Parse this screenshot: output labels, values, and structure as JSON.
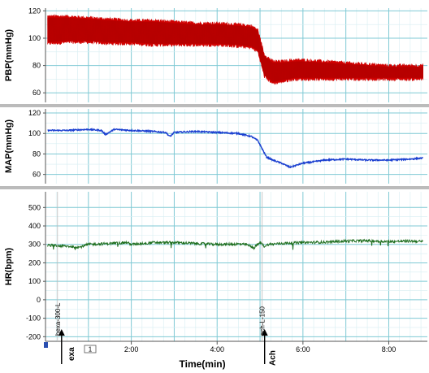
{
  "chart_data": [
    {
      "type": "line",
      "ylabel": "PBP(mmHg)",
      "y_ticks": [
        "120",
        "100",
        "80",
        "60"
      ],
      "ylim": [
        53,
        122
      ],
      "series": [
        {
          "color": "#d00000",
          "style": "band",
          "x": [
            0.05,
            0.5,
            1.0,
            1.5,
            2.0,
            2.5,
            3.0,
            3.5,
            4.0,
            4.5,
            4.8,
            4.95,
            5.1,
            5.3,
            5.5,
            5.8,
            6.0,
            6.5,
            7.0,
            7.5,
            8.0,
            8.5,
            8.8
          ],
          "upper": [
            116,
            116,
            115,
            114,
            113,
            113,
            112,
            111,
            111,
            110,
            109,
            106,
            88,
            83,
            83,
            84,
            84,
            83,
            82,
            81,
            80,
            80,
            80
          ],
          "lower": [
            96,
            97,
            97,
            96,
            96,
            95,
            95,
            95,
            95,
            94,
            93,
            90,
            72,
            67,
            68,
            70,
            70,
            70,
            70,
            70,
            70,
            70,
            70
          ]
        }
      ]
    },
    {
      "type": "line",
      "ylabel": "MAP(mmHg)",
      "y_ticks": [
        "120",
        "100",
        "80",
        "60"
      ],
      "ylim": [
        51,
        124
      ],
      "series": [
        {
          "color": "#1a3fd0",
          "style": "line",
          "x": [
            0.05,
            0.5,
            1.0,
            1.3,
            1.4,
            1.6,
            2.0,
            2.5,
            2.8,
            2.9,
            3.0,
            3.5,
            4.0,
            4.5,
            4.8,
            4.95,
            5.05,
            5.15,
            5.3,
            5.5,
            5.7,
            6.0,
            6.2,
            6.5,
            7.0,
            7.5,
            8.0,
            8.5,
            8.8
          ],
          "values": [
            103,
            103,
            104,
            103,
            99,
            104,
            103,
            102,
            101,
            97,
            101,
            102,
            101,
            100,
            97,
            93,
            85,
            77,
            74,
            71,
            67,
            71,
            72,
            74,
            75,
            74,
            74,
            75,
            76
          ]
        }
      ]
    },
    {
      "type": "line",
      "ylabel": "HR(bpm)",
      "y_ticks": [
        "500",
        "400",
        "300",
        "200",
        "100",
        "0",
        "-100",
        "-200"
      ],
      "ylim": [
        -225,
        585
      ],
      "series": [
        {
          "color": "#1e6e1e",
          "style": "noisy",
          "x": [
            0.05,
            0.5,
            0.8,
            1.0,
            1.5,
            1.9,
            2.0,
            2.5,
            3.0,
            3.5,
            4.0,
            4.5,
            4.7,
            4.85,
            5.0,
            5.1,
            5.2,
            5.5,
            6.0,
            6.5,
            7.0,
            7.5,
            8.0,
            8.5,
            8.8
          ],
          "values": [
            295,
            290,
            285,
            300,
            305,
            310,
            300,
            310,
            310,
            305,
            300,
            302,
            298,
            280,
            310,
            290,
            300,
            305,
            310,
            312,
            318,
            320,
            315,
            318,
            315
          ]
        }
      ]
    }
  ],
  "x_axis": {
    "title": "Time(min)",
    "ticks": [
      {
        "min": 2.0,
        "label": "2:00"
      },
      {
        "min": 4.0,
        "label": "4:00"
      },
      {
        "min": 6.0,
        "label": "6:00"
      },
      {
        "min": 8.0,
        "label": "8:00"
      }
    ],
    "range": [
      0,
      8.9
    ]
  },
  "events": [
    {
      "min": 0.28,
      "label": "hexa-300-L",
      "arrow_label": "exa"
    },
    {
      "min": 5.05,
      "label": "ach-L-150",
      "arrow_label": "Ach"
    }
  ],
  "page_indicator": "1",
  "colors": {
    "grid": "#9fd8e0",
    "separator": "#bbbbbb",
    "background": "#ffffff"
  }
}
